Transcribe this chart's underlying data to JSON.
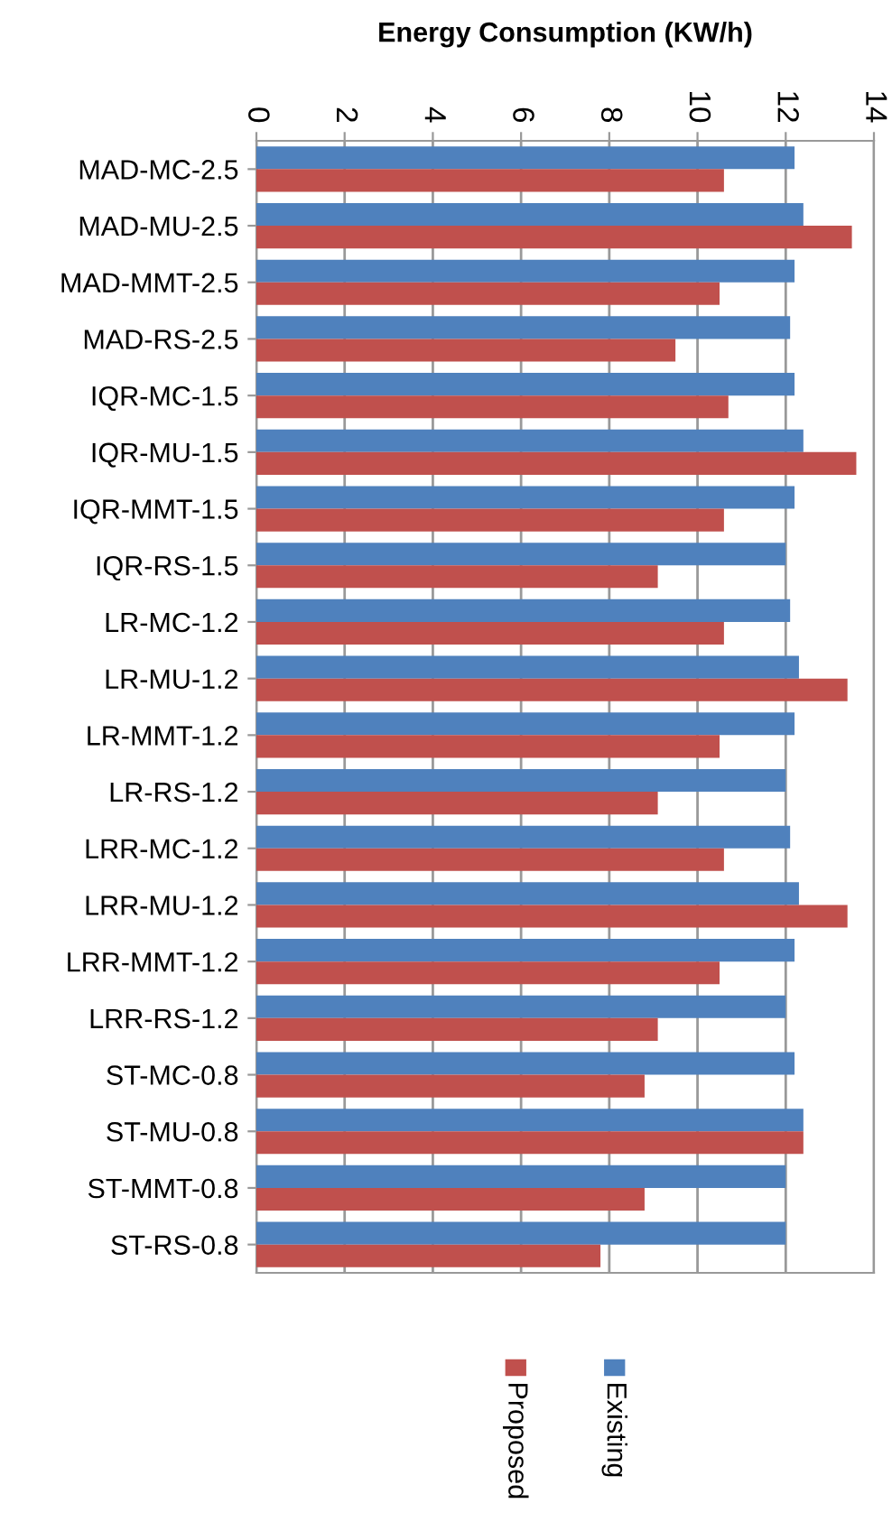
{
  "chart_data": {
    "type": "bar",
    "orientation": "horizontal",
    "title": "Energy Consumption (KW/h)",
    "categories": [
      "MAD-MC-2.5",
      "MAD-MU-2.5",
      "MAD-MMT-2.5",
      "MAD-RS-2.5",
      "IQR-MC-1.5",
      "IQR-MU-1.5",
      "IQR-MMT-1.5",
      "IQR-RS-1.5",
      "LR-MC-1.2",
      "LR-MU-1.2",
      "LR-MMT-1.2",
      "LR-RS-1.2",
      "LRR-MC-1.2",
      "LRR-MU-1.2",
      "LRR-MMT-1.2",
      "LRR-RS-1.2",
      "ST-MC-0.8",
      "ST-MU-0.8",
      "ST-MMT-0.8",
      "ST-RS-0.8"
    ],
    "series": [
      {
        "name": "Existing",
        "color": "#4f81bd",
        "values": [
          12.2,
          12.4,
          12.2,
          12.1,
          12.2,
          12.4,
          12.2,
          12.0,
          12.1,
          12.3,
          12.2,
          12.0,
          12.1,
          12.3,
          12.2,
          12.0,
          12.2,
          12.4,
          12.0,
          12.0
        ]
      },
      {
        "name": "Proposed",
        "color": "#c0504d",
        "values": [
          10.6,
          13.5,
          10.5,
          9.5,
          10.7,
          13.6,
          10.6,
          9.1,
          10.6,
          13.4,
          10.5,
          9.1,
          10.6,
          13.4,
          10.5,
          9.1,
          8.8,
          12.4,
          8.8,
          7.8
        ]
      }
    ],
    "xlim": [
      0,
      14
    ],
    "xticks": [
      0,
      2,
      4,
      6,
      8,
      10,
      12,
      14
    ],
    "grid": "x",
    "legend": "bottom"
  }
}
